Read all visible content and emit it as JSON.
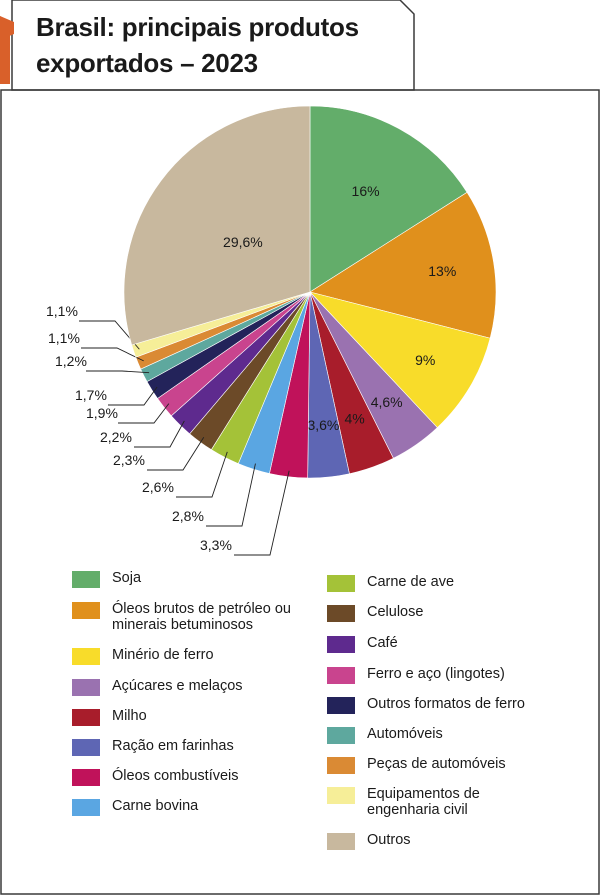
{
  "title": {
    "line1": "Brasil: principais produtos",
    "line2": "exportados – 2023"
  },
  "chart_data": {
    "type": "pie",
    "title": "Brasil: principais produtos exportados – 2023",
    "slices": [
      {
        "name": "Soja",
        "value": 16,
        "label": "16%",
        "color": "#63ad6a"
      },
      {
        "name": "Óleos brutos de petróleo ou\nminerais betuminosos",
        "value": 13,
        "label": "13%",
        "color": "#e0901c"
      },
      {
        "name": "Minério de ferro",
        "value": 9,
        "label": "9%",
        "color": "#f8dc2a"
      },
      {
        "name": "Açúcares e melaços",
        "value": 4.6,
        "label": "4,6%",
        "color": "#9a72b0"
      },
      {
        "name": "Milho",
        "value": 4,
        "label": "4%",
        "color": "#a81d2b"
      },
      {
        "name": "Ração em farinhas",
        "value": 3.6,
        "label": "3,6%",
        "color": "#5e66b4"
      },
      {
        "name": "Óleos combustíveis",
        "value": 3.3,
        "label": "3,3%",
        "color": "#c0125a"
      },
      {
        "name": "Carne bovina",
        "value": 2.8,
        "label": "2,8%",
        "color": "#5aa6e2"
      },
      {
        "name": "Carne de ave",
        "value": 2.6,
        "label": "2,6%",
        "color": "#a4c238"
      },
      {
        "name": "Celulose",
        "value": 2.3,
        "label": "2,3%",
        "color": "#6c4a28"
      },
      {
        "name": "Café",
        "value": 2.2,
        "label": "2,2%",
        "color": "#5e2a8e"
      },
      {
        "name": "Ferro e aço (lingotes)",
        "value": 1.9,
        "label": "1,9%",
        "color": "#c9448e"
      },
      {
        "name": "Outros formatos de ferro",
        "value": 1.7,
        "label": "1,7%",
        "color": "#23235a"
      },
      {
        "name": "Automóveis",
        "value": 1.2,
        "label": "1,2%",
        "color": "#5ea89e"
      },
      {
        "name": "Peças de automóveis",
        "value": 1.1,
        "label": "1,1%",
        "color": "#da8a34"
      },
      {
        "name": "Equipamentos de\nengenharia civil",
        "value": 1.1,
        "label": "1,1%",
        "color": "#f6ee98"
      },
      {
        "name": "Outros",
        "value": 29.6,
        "label": "29,6%",
        "color": "#c8b89e"
      }
    ]
  }
}
